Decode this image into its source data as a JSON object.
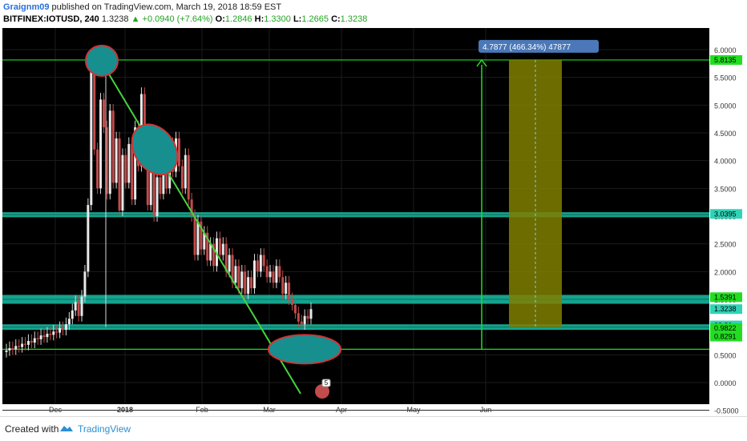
{
  "header": {
    "author": "Graignm09",
    "published_text": "published on TradingView.com, March 19, 2018 18:59 EST",
    "symbol": "BITFINEX:IOTUSD, 240",
    "price": "1.3238",
    "change": "+0.0940 (+7.64%)",
    "o_label": "O:",
    "o_val": "1.2846",
    "h_label": "H:",
    "h_val": "1.3300",
    "l_label": "L:",
    "l_val": "1.2665",
    "c_label": "C:",
    "c_val": "1.3238"
  },
  "footer": {
    "created_with": "Created with",
    "brand": "TradingView"
  },
  "chart_data": {
    "type": "candlestick",
    "colors": {
      "background": "#000000",
      "grid": "#1b1b1b",
      "support_zone": "#17c0a6",
      "trendline": "#46d43e",
      "ellipse_fill": "#178f8f",
      "ellipse_stroke": "#d33434",
      "projection_fill": "#7f7f00",
      "measure_label_bg": "#4a78b8",
      "price_label_green": "#22dd22",
      "price_label_teal": "#2fd3b5"
    },
    "y_ticks": [
      "6.0000",
      "5.5000",
      "5.0000",
      "4.5000",
      "4.0000",
      "3.5000",
      "3.0000",
      "2.5000",
      "2.0000",
      "1.5000",
      "1.0000",
      "0.5000",
      "0.0000",
      "-0.5000"
    ],
    "x_ticks": [
      "Dec",
      "2018",
      "Feb",
      "Mar",
      "Apr",
      "May",
      "Jun"
    ],
    "ylim": [
      -0.8,
      6.3
    ],
    "price_labels": [
      {
        "text": "5.8135",
        "value": 5.8135,
        "style": "green"
      },
      {
        "text": "3.0395",
        "value": 3.0395,
        "style": "teal"
      },
      {
        "text": "1.5391",
        "value": 1.5391,
        "style": "green"
      },
      {
        "text": "1.3238",
        "value": 1.3238,
        "style": "teal"
      },
      {
        "text": "00:31",
        "value": 1.03,
        "style": "teal"
      },
      {
        "text": "0.9822",
        "value": 0.9822,
        "style": "green"
      },
      {
        "text": "0.8291",
        "value": 0.8291,
        "style": "green"
      }
    ],
    "horizontal_lines": [
      5.8135,
      0.6
    ],
    "zones": [
      {
        "low": 2.98,
        "high": 3.07
      },
      {
        "low": 1.42,
        "high": 1.58
      },
      {
        "low": 0.95,
        "high": 1.05
      }
    ],
    "measure_label": "4.7877 (466.34%) 47877",
    "event_badge": "5",
    "candles": [
      [
        0.55,
        0.58
      ],
      [
        0.58,
        0.62
      ],
      [
        0.62,
        0.6
      ],
      [
        0.6,
        0.66
      ],
      [
        0.66,
        0.64
      ],
      [
        0.64,
        0.7
      ],
      [
        0.7,
        0.68
      ],
      [
        0.68,
        0.75
      ],
      [
        0.75,
        0.72
      ],
      [
        0.72,
        0.8
      ],
      [
        0.8,
        0.78
      ],
      [
        0.78,
        0.85
      ],
      [
        0.85,
        0.82
      ],
      [
        0.82,
        0.88
      ],
      [
        0.88,
        0.86
      ],
      [
        0.86,
        0.92
      ],
      [
        0.92,
        0.9
      ],
      [
        0.9,
        0.98
      ],
      [
        0.98,
        0.95
      ],
      [
        0.95,
        1.05
      ],
      [
        1.05,
        1.15
      ],
      [
        1.15,
        1.3
      ],
      [
        1.3,
        1.45
      ],
      [
        1.45,
        1.2
      ],
      [
        1.2,
        1.55
      ],
      [
        1.55,
        2.0
      ],
      [
        2.0,
        3.2
      ],
      [
        3.2,
        5.6
      ],
      [
        5.6,
        4.2
      ],
      [
        4.2,
        3.5
      ],
      [
        3.5,
        5.1
      ],
      [
        5.1,
        4.6
      ],
      [
        4.6,
        3.4
      ],
      [
        3.4,
        4.9
      ],
      [
        4.9,
        3.6
      ],
      [
        3.6,
        4.4
      ],
      [
        4.4,
        3.1
      ],
      [
        3.1,
        4.1
      ],
      [
        4.1,
        3.6
      ],
      [
        3.6,
        4.3
      ],
      [
        4.3,
        3.3
      ],
      [
        3.3,
        4.6
      ],
      [
        4.6,
        3.9
      ],
      [
        3.9,
        5.2
      ],
      [
        5.2,
        4.4
      ],
      [
        4.4,
        3.2
      ],
      [
        3.2,
        3.8
      ],
      [
        3.8,
        3.0
      ],
      [
        3.0,
        3.7
      ],
      [
        3.7,
        3.4
      ],
      [
        3.4,
        4.2
      ],
      [
        4.2,
        3.5
      ],
      [
        3.5,
        4.3
      ],
      [
        4.3,
        3.8
      ],
      [
        3.8,
        4.4
      ],
      [
        4.4,
        3.9
      ],
      [
        3.9,
        3.5
      ],
      [
        3.5,
        4.1
      ],
      [
        4.1,
        3.3
      ],
      [
        3.3,
        3.0
      ],
      [
        3.0,
        2.3
      ],
      [
        2.3,
        2.9
      ],
      [
        2.9,
        2.4
      ],
      [
        2.4,
        2.7
      ],
      [
        2.7,
        2.2
      ],
      [
        2.2,
        2.5
      ],
      [
        2.5,
        2.1
      ],
      [
        2.1,
        2.6
      ],
      [
        2.6,
        2.3
      ],
      [
        2.3,
        2.5
      ],
      [
        2.5,
        2.0
      ],
      [
        2.0,
        2.3
      ],
      [
        2.3,
        1.8
      ],
      [
        1.8,
        2.1
      ],
      [
        2.1,
        1.7
      ],
      [
        1.7,
        2.0
      ],
      [
        2.0,
        1.6
      ],
      [
        1.6,
        1.9
      ],
      [
        1.9,
        1.7
      ],
      [
        1.7,
        2.2
      ],
      [
        2.2,
        2.0
      ],
      [
        2.0,
        2.3
      ],
      [
        2.3,
        2.1
      ],
      [
        2.1,
        1.9
      ],
      [
        1.9,
        2.0
      ],
      [
        2.0,
        1.8
      ],
      [
        1.8,
        2.1
      ],
      [
        2.1,
        1.9
      ],
      [
        1.9,
        1.6
      ],
      [
        1.6,
        1.8
      ],
      [
        1.8,
        1.5
      ],
      [
        1.5,
        1.4
      ],
      [
        1.4,
        1.25
      ],
      [
        1.25,
        1.1
      ],
      [
        1.1,
        1.05
      ],
      [
        1.05,
        1.2
      ],
      [
        1.2,
        1.15
      ],
      [
        1.15,
        1.3238
      ]
    ]
  }
}
